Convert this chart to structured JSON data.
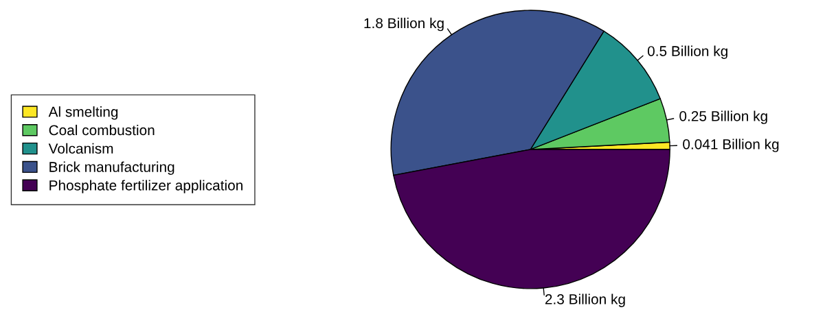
{
  "chart_data": {
    "type": "pie",
    "categories": [
      "Al smelting",
      "Coal combustion",
      "Volcanism",
      "Brick manufacturing",
      "Phosphate fertilizer application"
    ],
    "values": [
      0.041,
      0.25,
      0.5,
      1.8,
      2.3
    ],
    "colors": [
      "#fde725",
      "#5ec962",
      "#21918c",
      "#3b528b",
      "#440154"
    ],
    "value_labels": [
      "0.041 Billion kg",
      "0.25 Billion kg",
      "0.5 Billion kg",
      "1.8 Billion kg",
      "2.3 Billion kg"
    ],
    "legend": "left"
  }
}
